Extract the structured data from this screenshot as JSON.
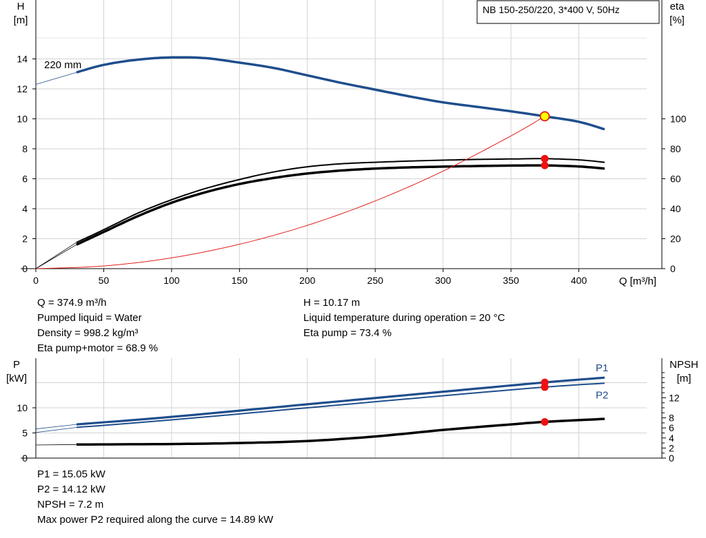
{
  "chart_data": [
    {
      "type": "line",
      "title": "NB 150-250/220, 3*400 V, 50Hz",
      "xlabel": "Q [m³/h]",
      "ylabel": "H\n[m]",
      "y2label": "eta\n[%]",
      "xlim": [
        0,
        450
      ],
      "xticks": [
        0,
        50,
        100,
        150,
        200,
        250,
        300,
        350,
        400
      ],
      "ylim": [
        0,
        16
      ],
      "yticks": [
        0,
        2,
        4,
        6,
        8,
        10,
        12,
        14
      ],
      "y2lim": [
        0,
        160
      ],
      "y2ticks": [
        0,
        20,
        40,
        60,
        80,
        100
      ],
      "grid": true,
      "annotations": [
        {
          "text": "220 mm",
          "x": 8,
          "y": 13.7
        }
      ],
      "series": [
        {
          "role": "H",
          "axis": "left",
          "color": "#1f4e8c",
          "extrapolated": [
            [
              0,
              12.3
            ],
            [
              29.9,
              13.1
            ]
          ],
          "x": [
            29.9,
            50,
            75,
            100,
            125,
            150,
            175,
            200,
            225,
            250,
            275,
            300,
            325,
            350,
            374.9,
            400,
            419
          ],
          "y": [
            13.1,
            13.6,
            13.95,
            14.1,
            14.05,
            13.75,
            13.4,
            12.9,
            12.4,
            11.95,
            11.5,
            11.1,
            10.8,
            10.5,
            10.17,
            9.8,
            9.3
          ]
        },
        {
          "role": "eta-pump",
          "axis": "right",
          "color": "#000000",
          "extrapolated": [
            [
              0,
              0
            ],
            [
              29.9,
              17.5
            ]
          ],
          "x": [
            29.9,
            50,
            75,
            100,
            125,
            150,
            175,
            200,
            225,
            250,
            275,
            300,
            325,
            350,
            374.9,
            400,
            419
          ],
          "y": [
            17.5,
            26,
            37,
            46,
            53.5,
            59.5,
            64.5,
            68,
            70,
            71,
            71.8,
            72.4,
            72.9,
            73.2,
            73.4,
            72.6,
            71
          ]
        },
        {
          "role": "eta-pump-motor",
          "axis": "right",
          "color": "#000000",
          "extrapolated": [
            [
              0,
              0
            ],
            [
              29.9,
              16
            ]
          ],
          "x": [
            29.9,
            50,
            75,
            100,
            125,
            150,
            175,
            200,
            225,
            250,
            275,
            300,
            325,
            350,
            374.9,
            400,
            419
          ],
          "y": [
            16,
            24.5,
            35,
            44,
            51,
            56.5,
            60.5,
            63.5,
            65.5,
            66.8,
            67.6,
            68.1,
            68.5,
            68.8,
            68.9,
            68.2,
            66.8
          ]
        },
        {
          "role": "system-curve",
          "axis": "left",
          "color": "#e0201a",
          "x": [
            0,
            50,
            100,
            150,
            200,
            250,
            300,
            350,
            374.9
          ],
          "y": [
            0,
            0.18,
            0.72,
            1.63,
            2.89,
            4.52,
            6.51,
            8.86,
            10.17
          ]
        }
      ],
      "markers": [
        {
          "x": 374.9,
          "y": 10.17,
          "axis": "left",
          "kind": "duty",
          "fill": "#ffff00",
          "stroke": "#e0201a"
        },
        {
          "x": 374.9,
          "y": 73.4,
          "axis": "right",
          "kind": "point",
          "fill": "#ee1111"
        },
        {
          "x": 374.9,
          "y": 68.9,
          "axis": "right",
          "kind": "point",
          "fill": "#ee1111"
        }
      ]
    },
    {
      "type": "line",
      "xlim": [
        0,
        450
      ],
      "xticks": [
        50,
        100,
        150,
        200,
        250,
        300,
        350,
        400
      ],
      "ylabel": "P\n[kW]",
      "ylim": [
        0,
        20
      ],
      "yticks": [
        0,
        5,
        10
      ],
      "y2label": "NPSH\n[m]",
      "y2lim": [
        0,
        20
      ],
      "y2ticks": [
        0,
        2,
        4,
        6,
        8,
        12
      ],
      "y2tick_labels": [
        "0",
        "2",
        "4",
        "6",
        "8",
        "12"
      ],
      "y2minor": [
        1,
        3,
        5,
        7,
        9,
        10,
        11,
        13,
        14,
        15,
        16,
        17
      ],
      "grid": true,
      "series": [
        {
          "name": "P1",
          "axis": "left",
          "color": "#1f4e8c",
          "extrapolated": [
            [
              0,
              5.8
            ],
            [
              29.9,
              6.7
            ]
          ],
          "x": [
            29.9,
            100,
            200,
            300,
            374.9,
            419
          ],
          "y": [
            6.7,
            8.2,
            10.7,
            13.2,
            15.05,
            16.0
          ]
        },
        {
          "name": "P2",
          "axis": "left",
          "color": "#1f4e8c",
          "extrapolated": [
            [
              0,
              5.1
            ],
            [
              29.9,
              6.1
            ]
          ],
          "x": [
            29.9,
            100,
            200,
            300,
            374.9,
            419
          ],
          "y": [
            6.1,
            7.6,
            10.0,
            12.4,
            14.12,
            14.89
          ]
        },
        {
          "role": "NPSH",
          "axis": "right",
          "color": "#000000",
          "extrapolated": [
            [
              0,
              2.6
            ],
            [
              29.9,
              2.7
            ]
          ],
          "x": [
            29.9,
            100,
            150,
            200,
            250,
            300,
            350,
            374.9,
            419
          ],
          "y": [
            2.7,
            2.8,
            3.0,
            3.4,
            4.3,
            5.6,
            6.7,
            7.2,
            7.8
          ]
        }
      ],
      "markers": [
        {
          "x": 374.9,
          "y": 15.05,
          "axis": "left",
          "fill": "#ee1111"
        },
        {
          "x": 374.9,
          "y": 14.12,
          "axis": "left",
          "fill": "#ee1111"
        },
        {
          "x": 374.9,
          "y": 7.2,
          "axis": "right",
          "fill": "#ee1111"
        }
      ]
    }
  ],
  "info_top_left": [
    "Q = 374.9 m³/h",
    "Pumped liquid = Water",
    "Density = 998.2 kg/m³",
    "Eta pump+motor = 68.9 %"
  ],
  "info_top_right": [
    "H = 10.17 m",
    "Liquid temperature during operation = 20 °C",
    "Eta pump = 73.4 %"
  ],
  "info_bottom": [
    "P1 = 15.05 kW",
    "P2 = 14.12 kW",
    "NPSH = 7.2 m",
    "Max power P2 required along the curve = 14.89 kW"
  ]
}
